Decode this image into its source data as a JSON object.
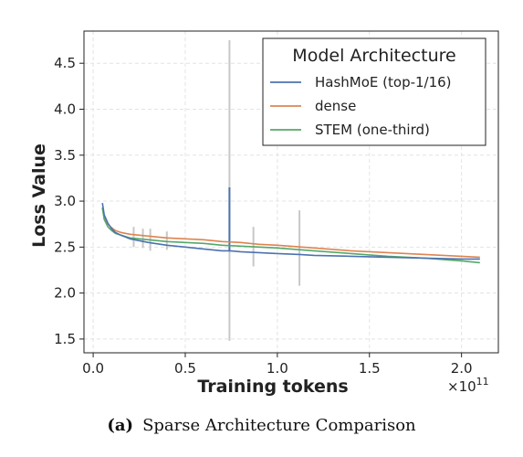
{
  "chart_data": {
    "type": "line",
    "title": "",
    "xlabel": "Training tokens",
    "ylabel": "Loss Value",
    "x_multiplier_label": "×10",
    "x_multiplier_exp": "11",
    "xlim": [
      -0.05,
      2.2
    ],
    "ylim": [
      1.35,
      4.85
    ],
    "xticks": [
      0.0,
      0.5,
      1.0,
      1.5,
      2.0
    ],
    "xtick_labels": [
      "0.0",
      "0.5",
      "1.0",
      "1.5",
      "2.0"
    ],
    "yticks": [
      1.5,
      2.0,
      2.5,
      3.0,
      3.5,
      4.0,
      4.5
    ],
    "ytick_labels": [
      "1.5",
      "2.0",
      "2.5",
      "3.0",
      "3.5",
      "4.0",
      "4.5"
    ],
    "grid": true,
    "legend": {
      "title": "Model Architecture",
      "position": "top-right"
    },
    "series": [
      {
        "name": "HashMoE (top-1/16)",
        "color": "#4c72b0",
        "x": [
          0.05,
          0.06,
          0.08,
          0.1,
          0.12,
          0.15,
          0.2,
          0.25,
          0.3,
          0.4,
          0.5,
          0.6,
          0.7,
          0.74,
          0.8,
          0.9,
          1.0,
          1.12,
          1.2,
          1.4,
          1.6,
          1.8,
          2.0,
          2.1
        ],
        "y": [
          2.98,
          2.85,
          2.76,
          2.7,
          2.66,
          2.63,
          2.59,
          2.57,
          2.55,
          2.52,
          2.5,
          2.48,
          2.46,
          2.46,
          2.45,
          2.44,
          2.43,
          2.42,
          2.41,
          2.4,
          2.39,
          2.38,
          2.37,
          2.37
        ]
      },
      {
        "name": "dense",
        "color": "#dd8452",
        "x": [
          0.05,
          0.06,
          0.08,
          0.1,
          0.12,
          0.15,
          0.2,
          0.25,
          0.3,
          0.4,
          0.5,
          0.6,
          0.7,
          0.8,
          0.9,
          1.0,
          1.2,
          1.4,
          1.6,
          1.8,
          2.0,
          2.1
        ],
        "y": [
          2.93,
          2.82,
          2.75,
          2.71,
          2.68,
          2.66,
          2.64,
          2.63,
          2.62,
          2.6,
          2.59,
          2.58,
          2.56,
          2.55,
          2.53,
          2.52,
          2.49,
          2.46,
          2.44,
          2.42,
          2.4,
          2.39
        ]
      },
      {
        "name": "STEM (one-third)",
        "color": "#55a868",
        "x": [
          0.05,
          0.06,
          0.08,
          0.1,
          0.12,
          0.15,
          0.2,
          0.25,
          0.3,
          0.4,
          0.5,
          0.6,
          0.7,
          0.8,
          0.9,
          1.0,
          1.2,
          1.4,
          1.6,
          1.8,
          2.0,
          2.1
        ],
        "y": [
          2.93,
          2.8,
          2.72,
          2.68,
          2.65,
          2.63,
          2.6,
          2.59,
          2.58,
          2.56,
          2.55,
          2.54,
          2.52,
          2.51,
          2.5,
          2.49,
          2.46,
          2.43,
          2.4,
          2.38,
          2.35,
          2.33
        ]
      }
    ],
    "spikes": [
      {
        "x": 0.74,
        "y_low": 1.48,
        "y_high": 4.75,
        "color": "#c8c8c8"
      },
      {
        "x": 0.74,
        "y_low": 2.46,
        "y_high": 3.15,
        "color": "#4c72b0"
      },
      {
        "x": 0.87,
        "y_low": 2.29,
        "y_high": 2.72,
        "color": "#c8c8c8"
      },
      {
        "x": 1.12,
        "y_low": 2.08,
        "y_high": 2.9,
        "color": "#c8c8c8"
      },
      {
        "x": 0.22,
        "y_low": 2.5,
        "y_high": 2.72,
        "color": "#c8c8c8"
      },
      {
        "x": 0.27,
        "y_low": 2.49,
        "y_high": 2.7,
        "color": "#c8c8c8"
      },
      {
        "x": 0.31,
        "y_low": 2.46,
        "y_high": 2.7,
        "color": "#c8c8c8"
      },
      {
        "x": 0.4,
        "y_low": 2.47,
        "y_high": 2.67,
        "color": "#c8c8c8"
      }
    ]
  },
  "caption": {
    "label": "(a)",
    "text": "Sparse Architecture Comparison"
  }
}
